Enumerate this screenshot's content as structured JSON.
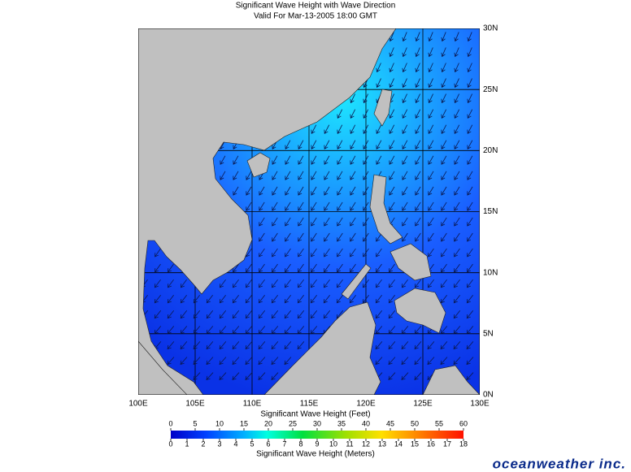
{
  "header": {
    "title": "Significant Wave Height with Wave Direction",
    "subtitle": "Valid For Mar-13-2005 18:00 GMT"
  },
  "map": {
    "lon_ticks": [
      {
        "value": 100,
        "label": "100E"
      },
      {
        "value": 105,
        "label": "105E"
      },
      {
        "value": 110,
        "label": "110E"
      },
      {
        "value": 115,
        "label": "115E"
      },
      {
        "value": 120,
        "label": "120E"
      },
      {
        "value": 125,
        "label": "125E"
      },
      {
        "value": 130,
        "label": "130E"
      }
    ],
    "lat_ticks": [
      {
        "value": 0,
        "label": "0N"
      },
      {
        "value": 5,
        "label": "5N"
      },
      {
        "value": 10,
        "label": "10N"
      },
      {
        "value": 15,
        "label": "15N"
      },
      {
        "value": 20,
        "label": "20N"
      },
      {
        "value": 25,
        "label": "25N"
      },
      {
        "value": 30,
        "label": "30N"
      }
    ]
  },
  "colorbar": {
    "feet_title": "Significant Wave Height (Feet)",
    "feet_ticks": [
      0,
      5,
      10,
      15,
      20,
      25,
      30,
      35,
      40,
      45,
      50,
      55,
      60
    ],
    "meters_title": "Significant Wave Height (Meters)",
    "meters_ticks": [
      0,
      1,
      2,
      3,
      4,
      5,
      6,
      7,
      8,
      9,
      10,
      11,
      12,
      13,
      14,
      15,
      16,
      17,
      18
    ]
  },
  "brand": "oceanweather inc."
}
